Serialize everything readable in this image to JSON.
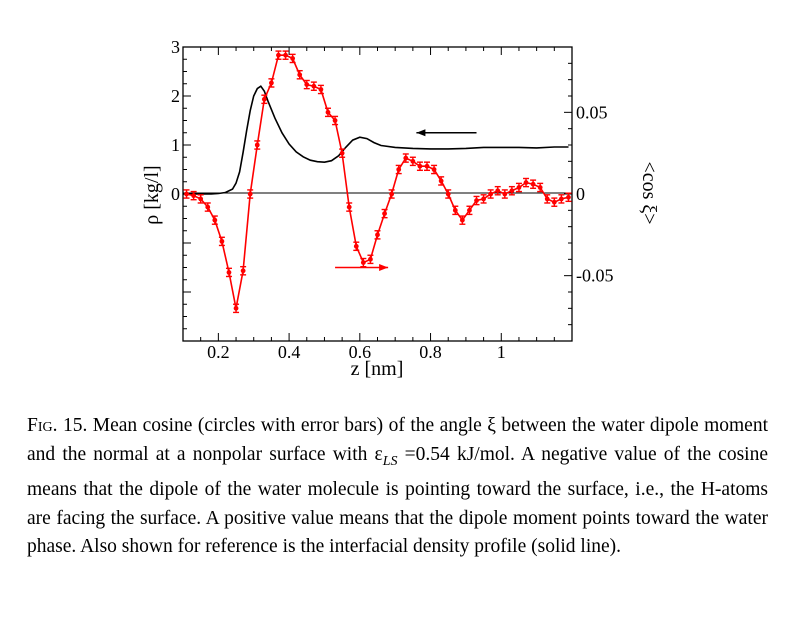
{
  "chart_data": {
    "type": "line",
    "xlabel": "z [nm]",
    "ylabel_left": "ρ [kg/l]",
    "ylabel_right": "<cos ξ>",
    "xlim": [
      0.1,
      1.2
    ],
    "ylim_left": [
      -3.0,
      3.0
    ],
    "ylim_right": [
      -0.09,
      0.09
    ],
    "x_ticks": [
      "0.2",
      "0.4",
      "0.6",
      "0.8",
      "1"
    ],
    "x_tick_values": [
      0.2,
      0.4,
      0.6,
      0.8,
      1.0
    ],
    "y_left_ticks": [
      "0",
      "1",
      "2",
      "3"
    ],
    "y_left_tick_values": [
      0,
      1,
      2,
      3
    ],
    "y_right_ticks": [
      "0.05",
      "0",
      "-0.05"
    ],
    "y_right_tick_values": [
      0.05,
      0,
      -0.05
    ],
    "grid": false,
    "series": [
      {
        "axis": "left",
        "color": "#000000",
        "style": "solid line",
        "x": [
          0.1,
          0.15,
          0.18,
          0.2,
          0.22,
          0.24,
          0.25,
          0.26,
          0.27,
          0.28,
          0.29,
          0.3,
          0.31,
          0.32,
          0.33,
          0.34,
          0.36,
          0.38,
          0.4,
          0.42,
          0.44,
          0.46,
          0.48,
          0.5,
          0.52,
          0.54,
          0.56,
          0.58,
          0.6,
          0.62,
          0.64,
          0.66,
          0.7,
          0.75,
          0.8,
          0.85,
          0.9,
          0.95,
          1.0,
          1.05,
          1.1,
          1.15,
          1.19
        ],
        "y": [
          0.0,
          0.0,
          0.0,
          0.01,
          0.03,
          0.1,
          0.22,
          0.45,
          0.85,
          1.3,
          1.7,
          2.0,
          2.15,
          2.2,
          2.1,
          1.9,
          1.55,
          1.25,
          1.02,
          0.86,
          0.76,
          0.69,
          0.66,
          0.65,
          0.68,
          0.78,
          0.95,
          1.1,
          1.16,
          1.13,
          1.05,
          0.99,
          0.95,
          0.93,
          0.92,
          0.92,
          0.93,
          0.95,
          0.95,
          0.95,
          0.94,
          0.96,
          0.96
        ]
      },
      {
        "axis": "right",
        "color": "#ff0000",
        "style": "line with circles and error bars",
        "x": [
          0.11,
          0.13,
          0.15,
          0.17,
          0.19,
          0.21,
          0.23,
          0.25,
          0.27,
          0.29,
          0.31,
          0.33,
          0.35,
          0.37,
          0.39,
          0.41,
          0.43,
          0.45,
          0.47,
          0.49,
          0.51,
          0.53,
          0.55,
          0.57,
          0.59,
          0.61,
          0.63,
          0.65,
          0.67,
          0.69,
          0.71,
          0.73,
          0.75,
          0.77,
          0.79,
          0.81,
          0.83,
          0.85,
          0.87,
          0.89,
          0.91,
          0.93,
          0.95,
          0.97,
          0.99,
          1.01,
          1.03,
          1.05,
          1.07,
          1.09,
          1.11,
          1.13,
          1.15,
          1.17,
          1.19
        ],
        "y": [
          0.0,
          -0.001,
          -0.003,
          -0.008,
          -0.016,
          -0.029,
          -0.048,
          -0.07,
          -0.047,
          0.0,
          0.03,
          0.058,
          0.068,
          0.085,
          0.085,
          0.083,
          0.073,
          0.067,
          0.066,
          0.064,
          0.05,
          0.045,
          0.025,
          -0.008,
          -0.032,
          -0.042,
          -0.04,
          -0.025,
          -0.012,
          0.0,
          0.015,
          0.022,
          0.02,
          0.017,
          0.017,
          0.015,
          0.008,
          0.0,
          -0.01,
          -0.016,
          -0.01,
          -0.004,
          -0.003,
          0.0,
          0.002,
          0.0,
          0.002,
          0.004,
          0.007,
          0.006,
          0.004,
          -0.003,
          -0.005,
          -0.003,
          -0.002
        ],
        "err": 0.0025
      }
    ],
    "annotations": [
      {
        "type": "arrow",
        "color": "#000000",
        "direction": "left",
        "from": [
          0.93,
          1.25
        ],
        "to": [
          0.76,
          1.25
        ]
      },
      {
        "type": "arrow",
        "color": "#ff0000",
        "direction": "right",
        "from": [
          0.53,
          -1.5
        ],
        "to": [
          0.68,
          -1.5
        ]
      }
    ]
  },
  "caption": {
    "label": "Fig. 15.",
    "text": " Mean cosine (circles with error bars) of the angle ξ between the water dipole moment and the normal at a nonpolar surface with ε",
    "subscript": "LS",
    "text_after": " =0.54 kJ/mol. A negative value of the cosine means that the dipole of the water molecule is pointing toward the surface, i.e., the H-atoms are facing the surface. A positive value means that the dipole moment points toward the water phase. Also shown for reference is the interfacial density profile (solid line)."
  }
}
